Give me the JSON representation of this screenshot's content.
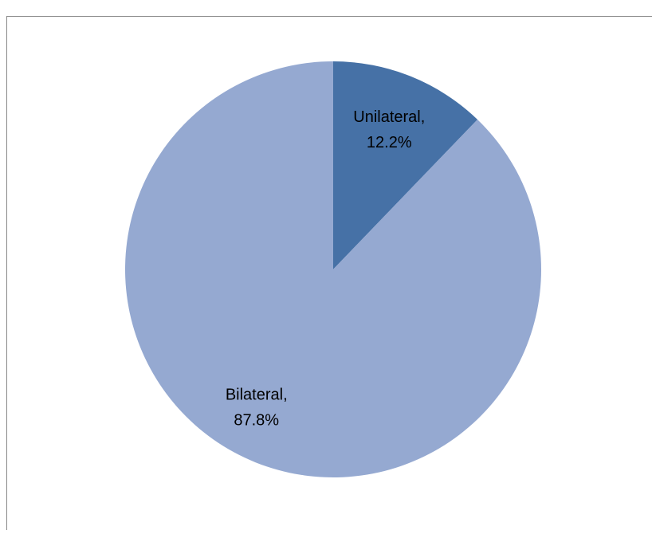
{
  "chart_data": {
    "type": "pie",
    "values": [
      12.2,
      87.8
    ],
    "value_labels": [
      [
        "Unilateral,",
        "12.2%"
      ],
      [
        "Bilateral,",
        "87.8%"
      ]
    ],
    "colors": [
      "#4671a6",
      "#95a9d1"
    ]
  }
}
